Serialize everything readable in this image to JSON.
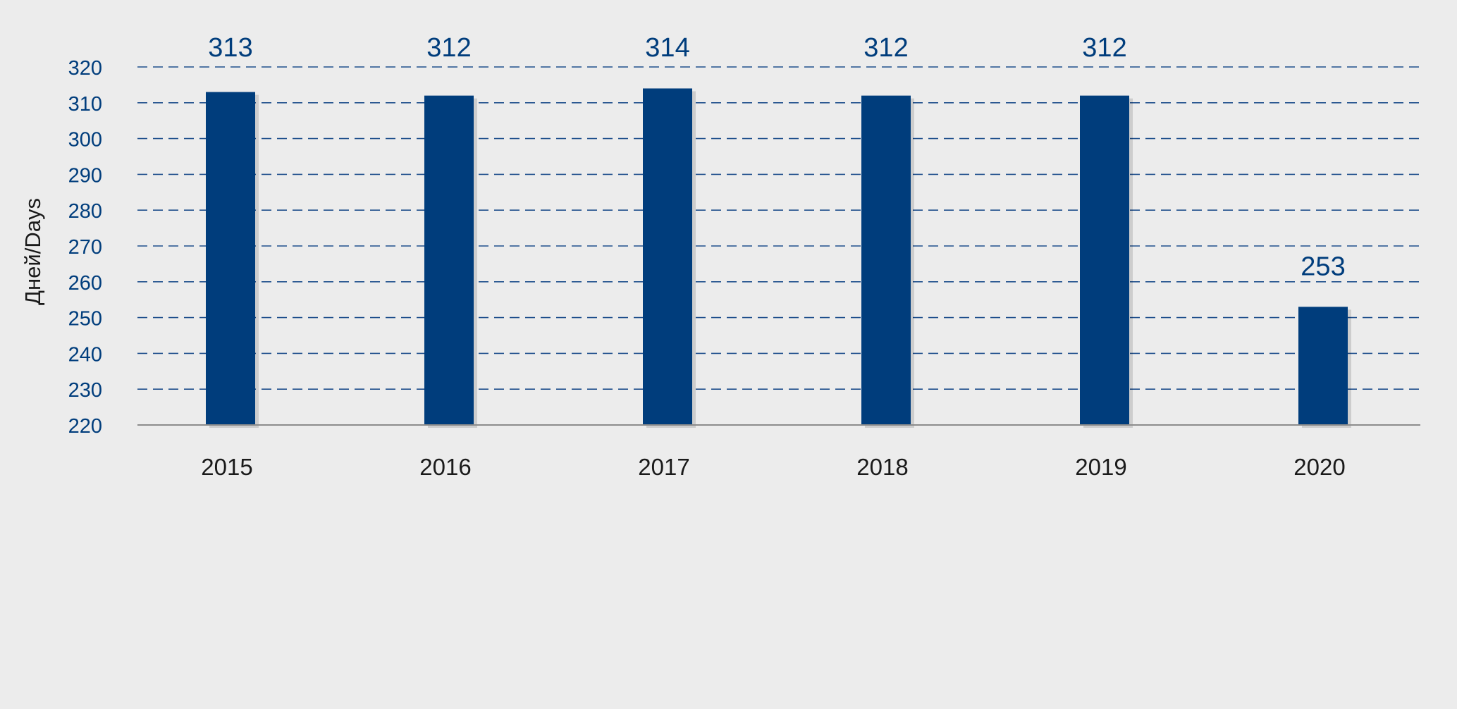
{
  "chart_data": {
    "type": "bar",
    "categories": [
      "2015",
      "2016",
      "2017",
      "2018",
      "2019",
      "2020"
    ],
    "values": [
      313,
      312,
      314,
      312,
      312,
      253
    ],
    "data_labels": [
      "313",
      "312",
      "314",
      "312",
      "312",
      "253"
    ],
    "ylabel": "Дней/Days",
    "xlabel": "",
    "ylim": [
      220,
      320
    ],
    "y_ticks": [
      220,
      230,
      240,
      250,
      260,
      270,
      280,
      290,
      300,
      310,
      320
    ],
    "grid": true,
    "grid_style": "dashed",
    "legend": "none",
    "colors": {
      "bar": "#003d7c",
      "grid": "#1f4f8c",
      "tick_label": "#003d7c",
      "data_label": "#003d7c",
      "category_label": "#1a1a1a",
      "axis_line": "#8c8c8c",
      "background": "#ececec"
    }
  }
}
